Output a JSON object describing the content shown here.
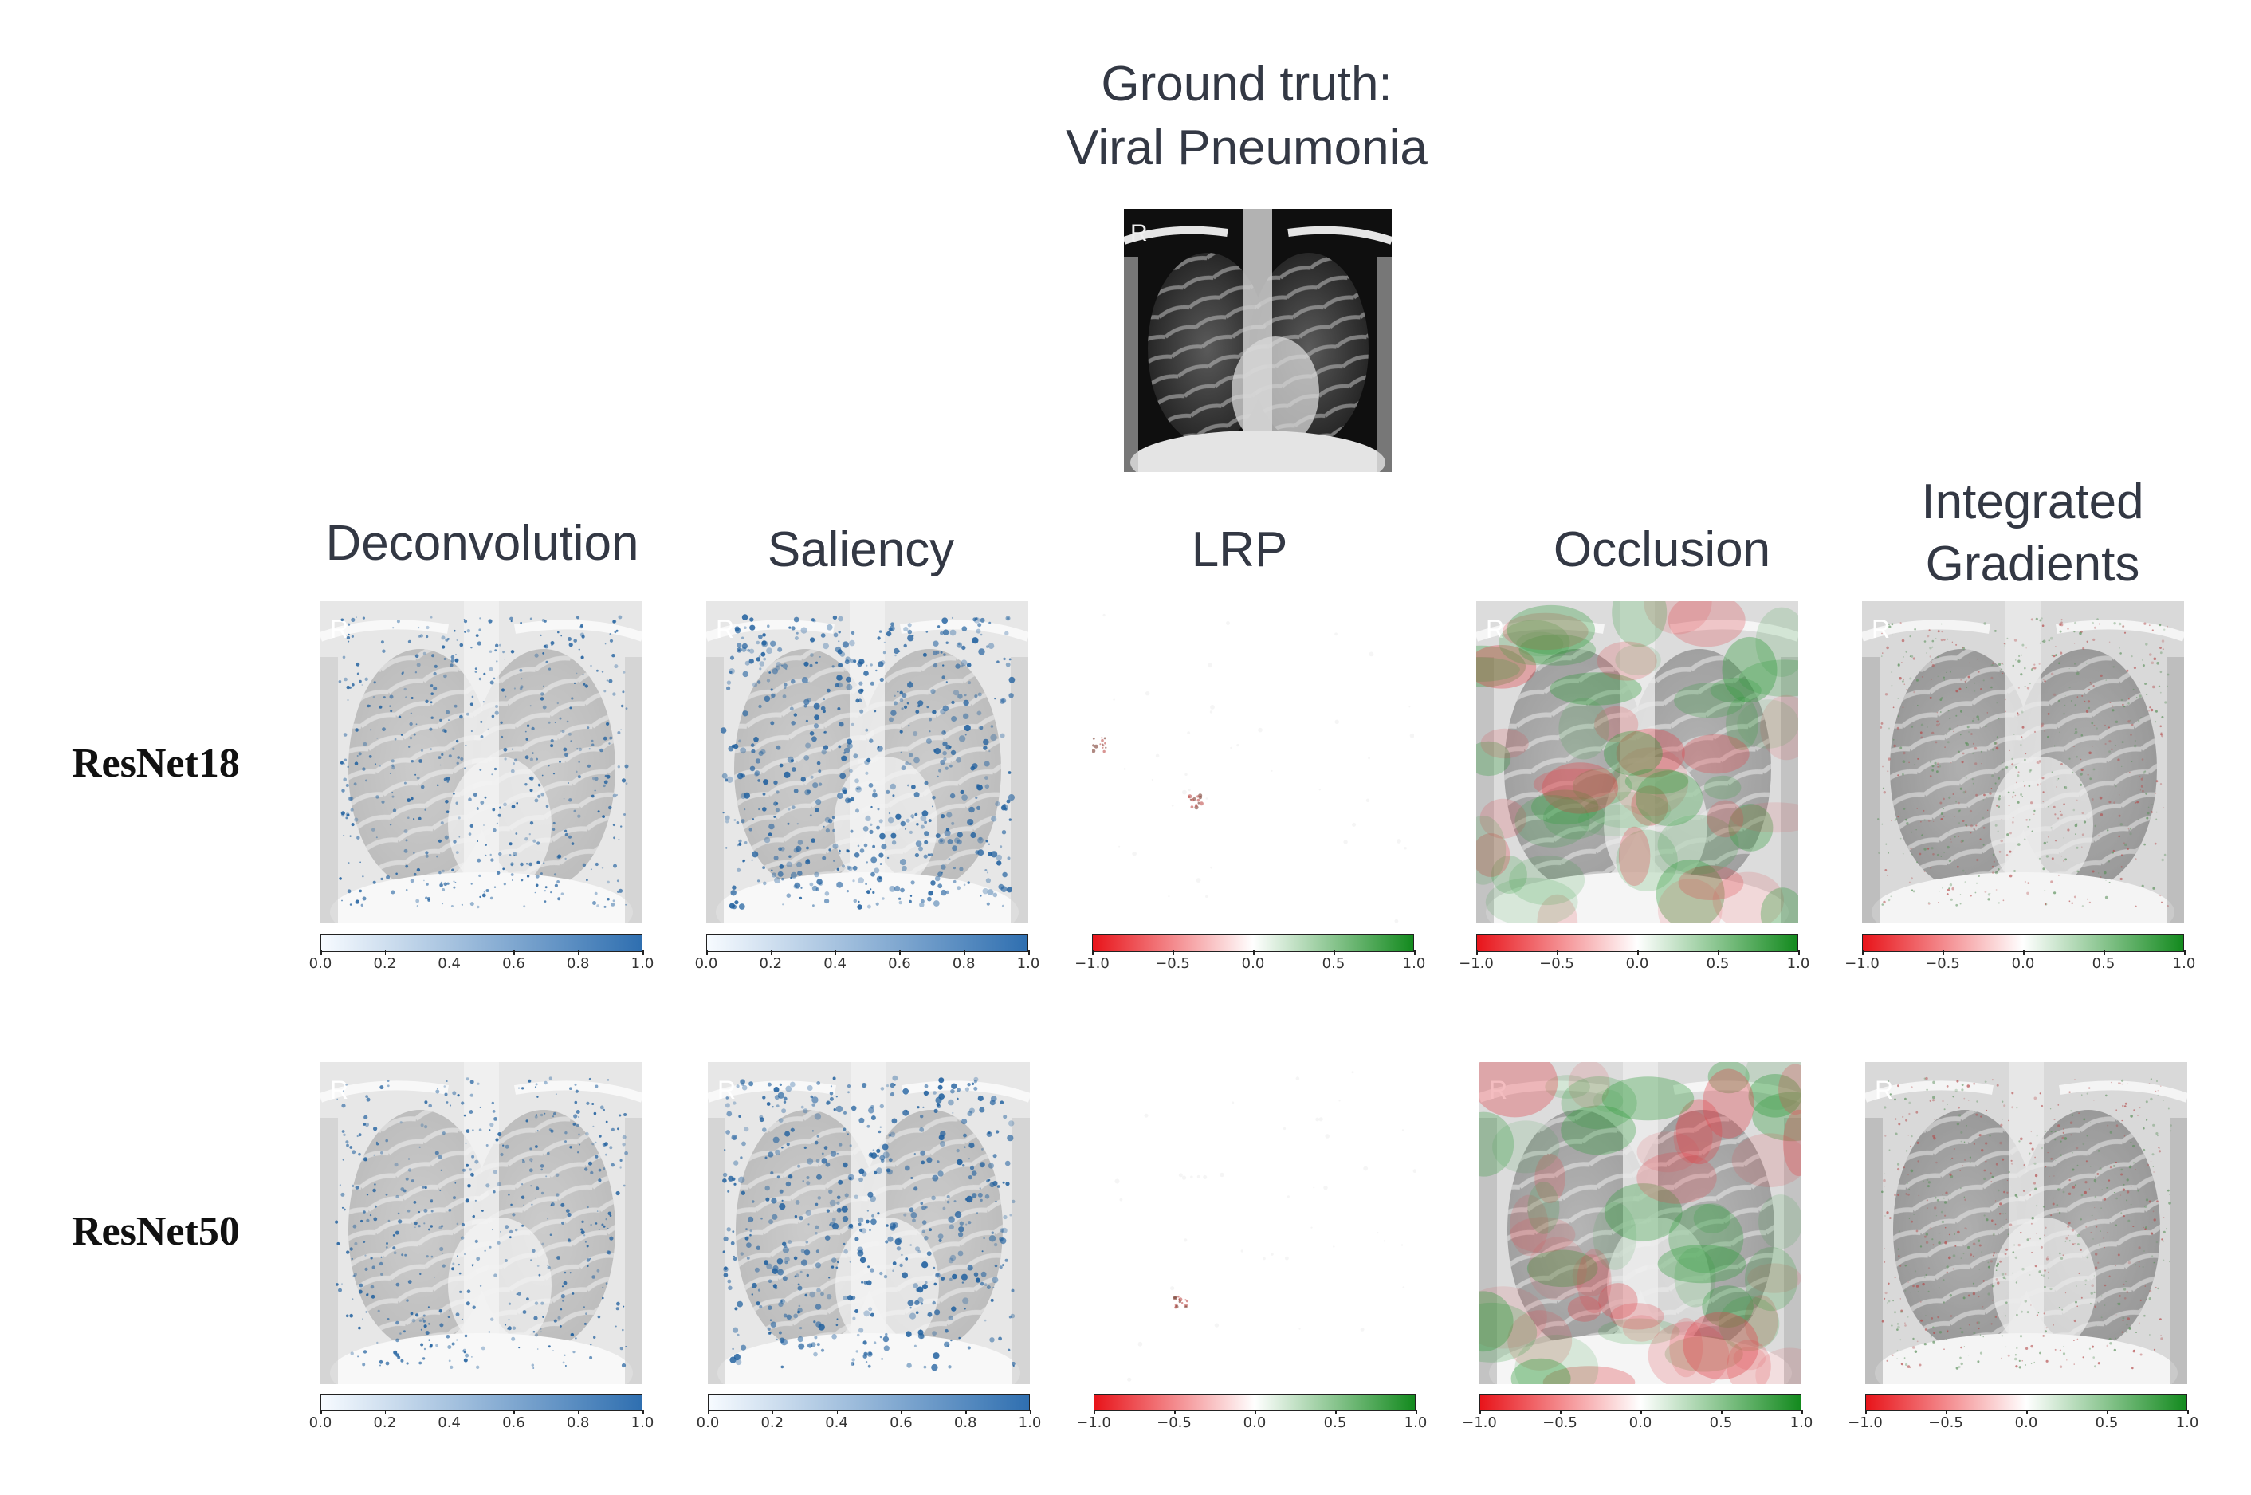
{
  "title": {
    "line1": "Ground truth:",
    "line2": "Viral Pneumonia"
  },
  "xray": {
    "marker": "R"
  },
  "columns": [
    {
      "label": "Deconvolution"
    },
    {
      "label": "Saliency"
    },
    {
      "label": "LRP"
    },
    {
      "label": "Occlusion"
    },
    {
      "label_line1": "Integrated",
      "label_line2": "Gradients"
    }
  ],
  "rows": [
    {
      "label": "ResNet18"
    },
    {
      "label": "ResNet50"
    }
  ],
  "colorbars": {
    "blue": {
      "ticks": [
        "0.0",
        "0.2",
        "0.4",
        "0.6",
        "0.8",
        "1.0"
      ],
      "colors": [
        "#f7fbff",
        "#2f6fb0"
      ]
    },
    "diverging": {
      "ticks": [
        "−1.0",
        "−0.5",
        "0.0",
        "0.5",
        "1.0"
      ],
      "colors": [
        "#e8141a",
        "#ffffff",
        "#138a1e"
      ]
    }
  }
}
